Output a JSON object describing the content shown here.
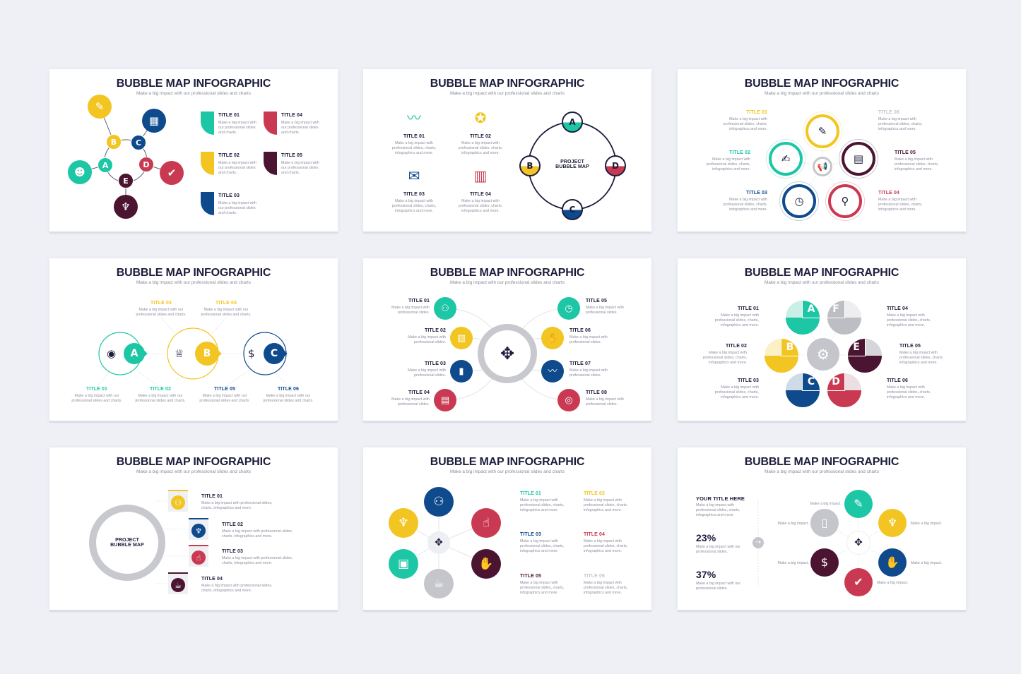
{
  "page": {
    "background": "#eef0f6"
  },
  "colors": {
    "teal": "#1dc6a4",
    "yellow": "#f2c522",
    "blue": "#0e4a8c",
    "red": "#c93a52",
    "maroon": "#4b1532",
    "gray": "#c5c6cb",
    "dark": "#1c1c3c"
  },
  "slides": [
    {
      "title": "BUBBLE MAP INFOGRAPHIC",
      "subtitle": "Make a big impact with our professional slides and charts",
      "letters": [
        "A",
        "B",
        "C",
        "D",
        "E"
      ],
      "icons": [
        "profile-heads-icon",
        "document-pen-icon",
        "building-icon",
        "browser-check-icon",
        "tie-icon"
      ],
      "items": [
        {
          "title": "TITLE 01",
          "desc": "Make a big impact with our professional slides and charts."
        },
        {
          "title": "TITLE 02",
          "desc": "Make a big impact with our professional slides and charts."
        },
        {
          "title": "TITLE 03",
          "desc": "Make a big impact with our professional slides and charts."
        },
        {
          "title": "TITLE 04",
          "desc": "Make a big impact with our professional slides and charts."
        },
        {
          "title": "TITLE 05",
          "desc": "Make a big impact with our professional slides and charts."
        }
      ]
    },
    {
      "title": "BUBBLE MAP INFOGRAPHIC",
      "subtitle": "Make a big impact with our professional slides and charts",
      "center_label": "PROJECT BUBBLE MAP",
      "letters": [
        "A",
        "B",
        "C",
        "D"
      ],
      "icons": [
        "line-chart-icon",
        "medals-icon",
        "certificate-icon",
        "building-growth-icon"
      ],
      "items": [
        {
          "title": "TITLE 01",
          "desc": "Make a big impact with professional slides, charts, infographics and more."
        },
        {
          "title": "TITLE 02",
          "desc": "Make a big impact with professional slides, charts, infographics and more."
        },
        {
          "title": "TITLE 03",
          "desc": "Make a big impact with professional slides, charts, infographics and more."
        },
        {
          "title": "TITLE 04",
          "desc": "Make a big impact with professional slides, charts, infographics and more."
        }
      ]
    },
    {
      "title": "BUBBLE MAP INFOGRAPHIC",
      "subtitle": "Make a big impact with our professional slides and charts",
      "icons": [
        "document-pen-icon",
        "cheque-icon",
        "stopwatch-dollar-icon",
        "magnifier-dollar-icon",
        "presentation-icon",
        "megaphone-icon"
      ],
      "items": [
        {
          "title": "TITLE 01",
          "desc": "Make a big impact with professional slides, charts, infographics and more."
        },
        {
          "title": "TITLE 02",
          "desc": "Make a big impact with professional slides, charts, infographics and more."
        },
        {
          "title": "TITLE 03",
          "desc": "Make a big impact with professional slides, charts, infographics and more."
        },
        {
          "title": "TITLE 04",
          "desc": "Make a big impact with professional slides, charts, infographics and more."
        },
        {
          "title": "TITLE 05",
          "desc": "Make a big impact with professional slides, charts, infographics and more."
        },
        {
          "title": "TITLE 06",
          "desc": "Make a big impact with professional slides, charts, infographics and more."
        }
      ]
    },
    {
      "title": "BUBBLE MAP INFOGRAPHIC",
      "subtitle": "Make a big impact with our professional slides and charts",
      "letters": [
        "A",
        "B",
        "C"
      ],
      "icons": [
        "eye-icon",
        "trophy-chart-icon",
        "money-bag-icon"
      ],
      "items": [
        {
          "title": "TITLE 01",
          "desc": "Make a big impact with our professional slides and charts."
        },
        {
          "title": "TITLE 02",
          "desc": "Make a big impact with our professional slides and charts."
        },
        {
          "title": "TITLE 03",
          "desc": "Make a big impact with our professional slides and charts."
        },
        {
          "title": "TITLE 04",
          "desc": "Make a big impact with our professional slides and charts."
        },
        {
          "title": "TITLE 05",
          "desc": "Make a big impact with our professional slides and charts."
        },
        {
          "title": "TITLE 06",
          "desc": "Make a big impact with our professional slides and charts."
        }
      ]
    },
    {
      "title": "BUBBLE MAP INFOGRAPHIC",
      "subtitle": "Make a big impact with our professional slides and charts",
      "icons": [
        "team-hierarchy-icon",
        "abacus-icon",
        "bar-chart-icon",
        "presentation-board-icon",
        "stopwatch-dollar-icon",
        "handshake-icon",
        "line-chart-icon",
        "coins-icon",
        "person-arrows-icon"
      ],
      "items": [
        {
          "title": "TITLE 01",
          "desc": "Make a big impact with professional slides."
        },
        {
          "title": "TITLE 02",
          "desc": "Make a big impact with professional slides."
        },
        {
          "title": "TITLE 03",
          "desc": "Make a big impact with professional slides."
        },
        {
          "title": "TITLE 04",
          "desc": "Make a big impact with professional slides."
        },
        {
          "title": "TITLE 05",
          "desc": "Make a big impact with professional slides."
        },
        {
          "title": "TITLE 06",
          "desc": "Make a big impact with professional slides."
        },
        {
          "title": "TITLE 07",
          "desc": "Make a big impact with professional slides."
        },
        {
          "title": "TITLE 08",
          "desc": "Make a big impact with professional slides."
        }
      ]
    },
    {
      "title": "BUBBLE MAP INFOGRAPHIC",
      "subtitle": "Make a big impact with our professional slides and charts",
      "letters": [
        "A",
        "B",
        "C",
        "D",
        "E",
        "F"
      ],
      "icons": [
        "network-person-icon"
      ],
      "items": [
        {
          "title": "TITLE 01",
          "desc": "Make a big impact with professional slides, charts, infographics and more."
        },
        {
          "title": "TITLE 02",
          "desc": "Make a big impact with professional slides, charts, infographics and more."
        },
        {
          "title": "TITLE 03",
          "desc": "Make a big impact with professional slides, charts, infographics and more."
        },
        {
          "title": "TITLE 04",
          "desc": "Make a big impact with professional slides, charts, infographics and more."
        },
        {
          "title": "TITLE 05",
          "desc": "Make a big impact with professional slides, charts, infographics and more."
        },
        {
          "title": "TITLE 06",
          "desc": "Make a big impact with professional slides, charts, infographics and more."
        }
      ]
    },
    {
      "title": "BUBBLE MAP INFOGRAPHIC",
      "subtitle": "Make a big impact with our professional slides and charts",
      "center_label": "PROJECT BUBBLE MAP",
      "icons": [
        "team-hierarchy-icon",
        "tie-icon",
        "thumbs-up-icon",
        "coffee-cup-icon"
      ],
      "items": [
        {
          "title": "TITLE 01",
          "desc": "Make a big impact with professional slides, charts, infographics and more."
        },
        {
          "title": "TITLE 02",
          "desc": "Make a big impact with professional slides, charts, infographics and more."
        },
        {
          "title": "TITLE 03",
          "desc": "Make a big impact with professional slides, charts, infographics and more."
        },
        {
          "title": "TITLE 04",
          "desc": "Make a big impact with professional slides, charts, infographics and more."
        }
      ]
    },
    {
      "title": "BUBBLE MAP INFOGRAPHIC",
      "subtitle": "Make a big impact with our professional slides and charts",
      "icons": [
        "team-hierarchy-icon",
        "tie-icon",
        "thumbs-up-icon",
        "briefcase-icon",
        "handshake-icon",
        "coffee-cup-icon",
        "person-arrows-icon"
      ],
      "items": [
        {
          "title": "TITLE 01",
          "desc": "Make a big impact with professional slides, charts, infographics and more."
        },
        {
          "title": "TITLE 02",
          "desc": "Make a big impact with professional slides, charts, infographics and more."
        },
        {
          "title": "TITLE 03",
          "desc": "Make a big impact with professional slides, charts, infographics and more."
        },
        {
          "title": "TITLE 04",
          "desc": "Make a big impact with professional slides, charts, infographics and more."
        },
        {
          "title": "TITLE 05",
          "desc": "Make a big impact with professional slides, charts, infographics and more."
        },
        {
          "title": "TITLE 06",
          "desc": "Make a big impact with professional slides, charts, infographics and more."
        }
      ]
    },
    {
      "title": "BUBBLE MAP INFOGRAPHIC",
      "subtitle": "Make a big impact with our professional slides and charts",
      "heading": "YOUR TITLE HERE",
      "heading_desc": "Make a big impact with professional slides, charts, infographics and more.",
      "stats": [
        {
          "value": "23%",
          "desc": "Make a big impact with our professional slides."
        },
        {
          "value": "37%",
          "desc": "Make a big impact with our professional slides."
        }
      ],
      "icons": [
        "document-pen-icon",
        "bar-chart-decline-icon",
        "tie-icon",
        "money-bag-hand-icon",
        "handshake-icon",
        "browser-check-icon",
        "person-arrows-icon",
        "arrow-right-icon"
      ],
      "bubble_labels": [
        "Make a big impact.",
        "Make a big impact.",
        "Make a big impact.",
        "Make a big impact.",
        "Make a big impact.",
        "Make a big impact."
      ]
    }
  ]
}
